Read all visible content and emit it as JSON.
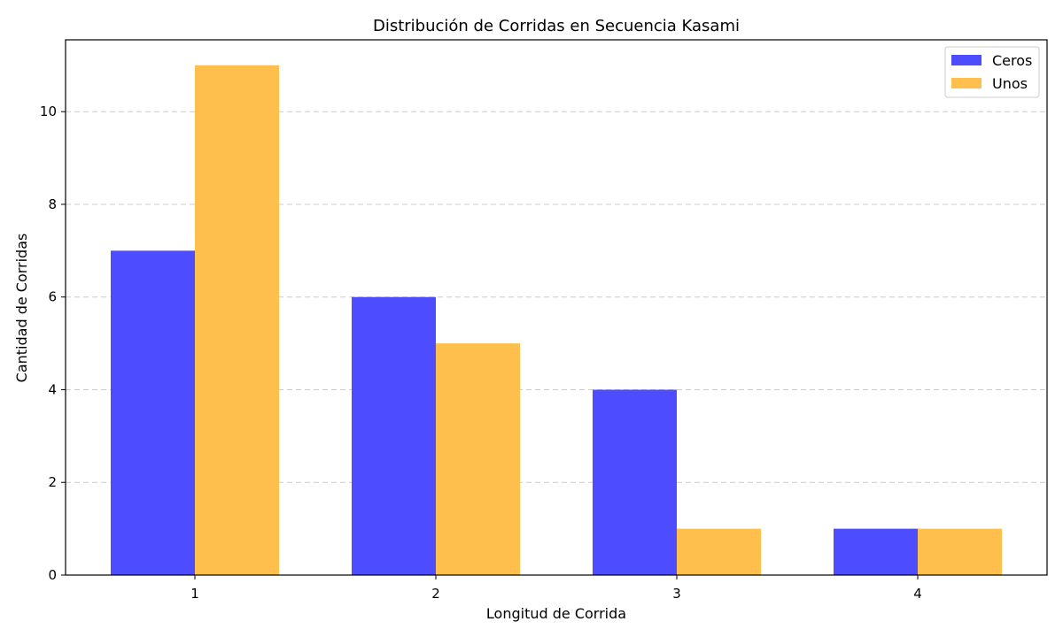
{
  "chart_data": {
    "type": "bar",
    "title": "Distribución de Corridas en Secuencia Kasami",
    "xlabel": "Longitud de Corrida",
    "ylabel": "Cantidad de Corridas",
    "categories": [
      "1",
      "2",
      "3",
      "4"
    ],
    "series": [
      {
        "name": "Ceros",
        "values": [
          7,
          6,
          4,
          1
        ],
        "color": "#4d4dff"
      },
      {
        "name": "Unos",
        "values": [
          11,
          5,
          1,
          1
        ],
        "color": "#ffbf4d"
      }
    ],
    "ylim": [
      0,
      11.55
    ],
    "yticks": [
      0,
      2,
      4,
      6,
      8,
      10
    ],
    "grid": "y-dashed",
    "legend": "top-right"
  }
}
